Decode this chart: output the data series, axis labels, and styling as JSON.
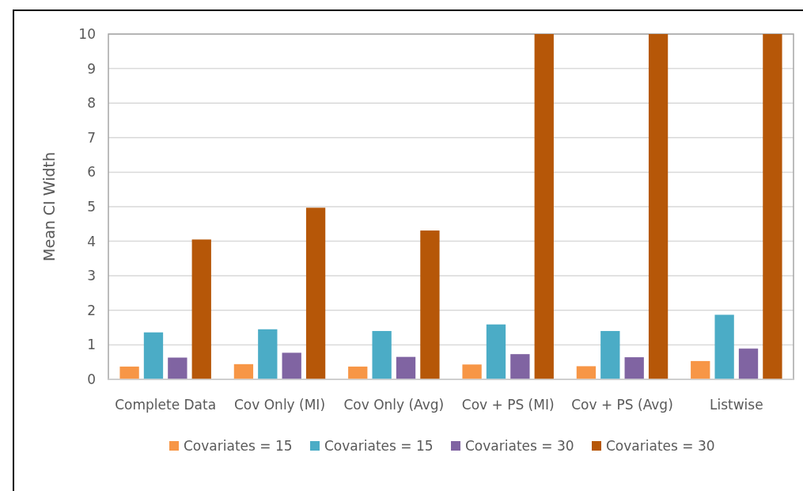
{
  "chart_data": {
    "type": "bar",
    "ylabel": "Mean CI Width",
    "categories": [
      "Complete Data",
      "Cov Only (MI)",
      "Cov Only (Avg)",
      "Cov + PS (MI)",
      "Cov + PS (Avg)",
      "Listwise"
    ],
    "series": [
      {
        "name": "Covariates = 15",
        "color": "#f79646",
        "values": [
          0.37,
          0.44,
          0.37,
          0.43,
          0.38,
          0.53
        ]
      },
      {
        "name": "Covariates = 15",
        "color": "#4bacc6",
        "values": [
          1.36,
          1.45,
          1.4,
          1.59,
          1.4,
          1.87
        ]
      },
      {
        "name": "Covariates = 30",
        "color": "#8064a2",
        "values": [
          0.63,
          0.77,
          0.65,
          0.73,
          0.64,
          0.89
        ]
      },
      {
        "name": "Covariates = 30",
        "color": "#b65708",
        "values": [
          4.05,
          4.97,
          4.31,
          10,
          10,
          10
        ]
      }
    ],
    "ylim": [
      0,
      10
    ],
    "yticks": [
      0,
      1,
      2,
      3,
      4,
      5,
      6,
      7,
      8,
      9,
      10
    ],
    "grid": "y",
    "legend": "bottom"
  }
}
